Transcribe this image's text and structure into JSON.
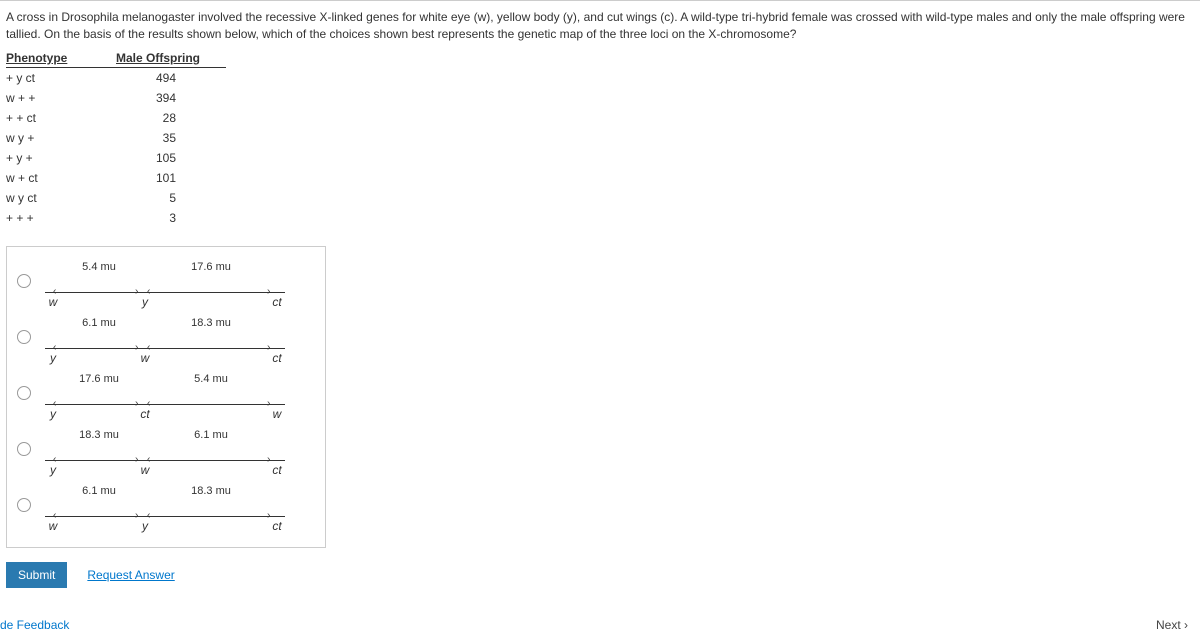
{
  "question": "A cross in Drosophila melanogaster involved the recessive X-linked genes for white eye (w), yellow body (y), and cut wings (c). A wild-type tri-hybrid female was crossed with wild-type males and only the male offspring were tallied. On the basis of the results shown below, which of the choices shown best represents the genetic map of the three loci on the X-chromosome?",
  "table": {
    "headers": {
      "phenotype": "Phenotype",
      "male_offspring": "Male Offspring"
    },
    "rows": [
      {
        "phenotype": "+  y  ct",
        "count": "494"
      },
      {
        "phenotype": "w  +  +",
        "count": "394"
      },
      {
        "phenotype": "+  +  ct",
        "count": "28"
      },
      {
        "phenotype": "w  y  +",
        "count": "35"
      },
      {
        "phenotype": "+  y  +",
        "count": "105"
      },
      {
        "phenotype": "w  +  ct",
        "count": "101"
      },
      {
        "phenotype": "w  y  ct",
        "count": "5"
      },
      {
        "phenotype": "+  +  +",
        "count": "3"
      }
    ]
  },
  "options": [
    {
      "left": "w",
      "mid": "y",
      "right": "ct",
      "d1": "5.4 mu",
      "d2": "17.6 mu"
    },
    {
      "left": "y",
      "mid": "w",
      "right": "ct",
      "d1": "6.1 mu",
      "d2": "18.3 mu"
    },
    {
      "left": "y",
      "mid": "ct",
      "right": "w",
      "d1": "17.6 mu",
      "d2": "5.4 mu"
    },
    {
      "left": "y",
      "mid": "w",
      "right": "ct",
      "d1": "18.3 mu",
      "d2": "6.1 mu"
    },
    {
      "left": "w",
      "mid": "y",
      "right": "ct",
      "d1": "6.1 mu",
      "d2": "18.3 mu"
    }
  ],
  "buttons": {
    "submit": "Submit",
    "request": "Request Answer"
  },
  "footer": {
    "feedback": "de Feedback",
    "next": "Next ›"
  },
  "colors": {
    "submit_bg": "#2a7ab0",
    "link": "#0077cc",
    "border": "#cccccc"
  }
}
